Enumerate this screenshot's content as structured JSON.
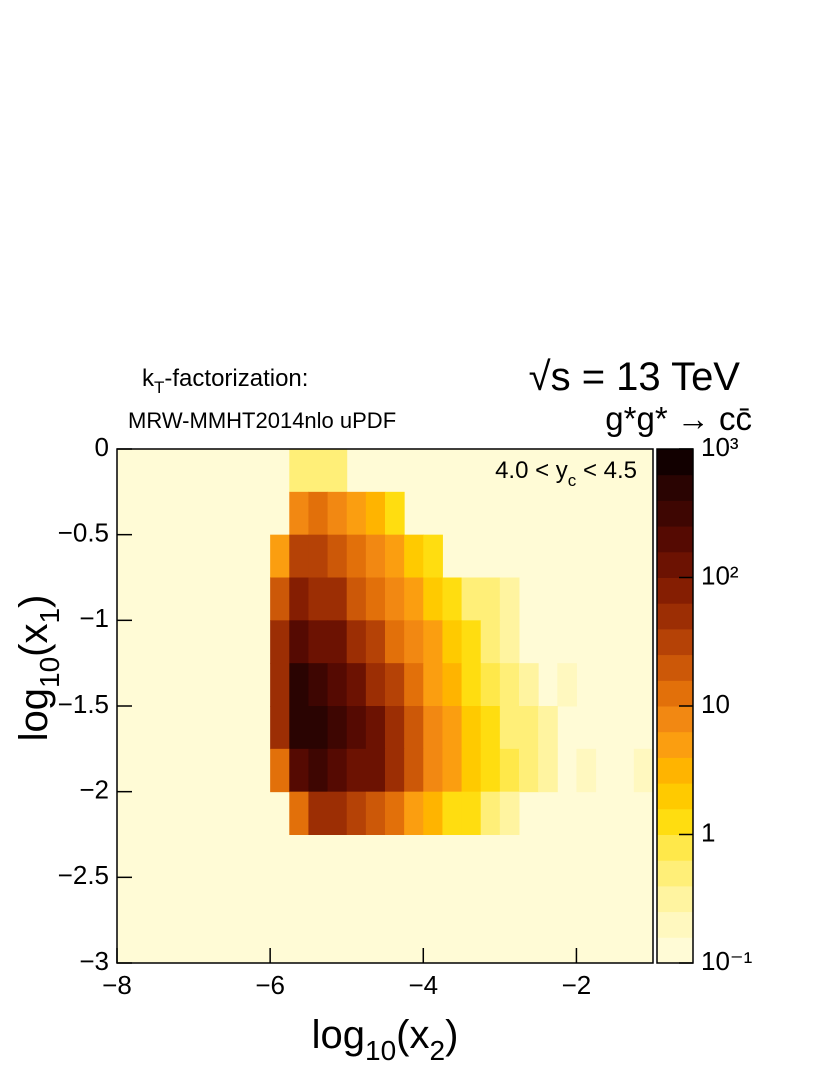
{
  "chart_data": {
    "type": "heatmap",
    "annotations": {
      "scheme": [
        "k",
        "T",
        "-factorization:"
      ],
      "pdf": "MRW-MMHT2014nlo uPDF",
      "energy": "√s = 13 TeV",
      "process": "g*g* → cc̄",
      "rapidity": [
        "4.0 < y",
        "c",
        " < 4.5"
      ]
    },
    "xlabel": [
      "log",
      "10",
      "(x",
      "2",
      ")"
    ],
    "ylabel": [
      "log",
      "10",
      "(x",
      "1",
      ")"
    ],
    "xlim": [
      -8,
      -1
    ],
    "ylim": [
      -3,
      0
    ],
    "xticks": [
      {
        "value": -8,
        "label": "−8"
      },
      {
        "value": -6,
        "label": "−6"
      },
      {
        "value": -4,
        "label": "−4"
      },
      {
        "value": -2,
        "label": "−2"
      }
    ],
    "yticks": [
      0,
      {
        "value": -0.5,
        "label": "−0.5"
      },
      {
        "value": -1,
        "label": "−1"
      },
      {
        "value": -1.5,
        "label": "−1.5"
      },
      {
        "value": -2,
        "label": "−2"
      },
      {
        "value": -2.5,
        "label": "−2.5"
      },
      {
        "value": -3,
        "label": "−3"
      }
    ],
    "zlim": [
      0.1,
      1000
    ],
    "zscale": "log",
    "zticks": [
      {
        "value": 0.1,
        "label": "10⁻¹"
      },
      1,
      10,
      {
        "value": 100,
        "label": "10²"
      },
      {
        "value": 1000,
        "label": "10³"
      }
    ],
    "palette": [
      "#fffbd6",
      "#fff8bf",
      "#fff4a0",
      "#ffef78",
      "#ffe84a",
      "#ffdd10",
      "#ffca00",
      "#ffb400",
      "#fb9e10",
      "#f28812",
      "#e2700a",
      "#cc5808",
      "#b54206",
      "#9c2e04",
      "#851e02",
      "#6c1202",
      "#550a02",
      "#3e0602",
      "#2a0402",
      "#120000"
    ],
    "xbins": [
      -8,
      -7.75,
      -7.5,
      -7.25,
      -7,
      -6.75,
      -6.5,
      -6.25,
      -6,
      -5.75,
      -5.5,
      -5.25,
      -5,
      -4.75,
      -4.5,
      -4.25,
      -4,
      -3.75,
      -3.5,
      -3.25,
      -3,
      -2.75,
      -2.5,
      -2.25,
      -2,
      -1.75,
      -1.5,
      -1.25,
      -1
    ],
    "ybins": [
      0,
      -0.25,
      -0.5,
      -0.75,
      -1,
      -1.25,
      -1.5,
      -1.75,
      -2,
      -2.25,
      -2.5,
      -2.75,
      -3
    ],
    "z": [
      [
        null,
        null,
        null,
        null,
        null,
        null,
        null,
        null,
        null,
        0.5,
        0.5,
        0.5,
        null,
        null,
        null,
        null,
        null,
        null,
        null,
        null,
        null,
        null,
        null,
        null,
        null,
        null,
        null,
        null
      ],
      [
        null,
        null,
        null,
        null,
        null,
        null,
        null,
        null,
        null,
        8,
        10,
        8,
        5,
        3,
        1,
        null,
        null,
        null,
        null,
        null,
        null,
        null,
        null,
        null,
        null,
        null,
        null,
        null
      ],
      [
        null,
        null,
        null,
        null,
        null,
        null,
        null,
        null,
        5,
        30,
        30,
        20,
        15,
        8,
        5,
        2,
        1,
        null,
        null,
        null,
        null,
        null,
        null,
        null,
        null,
        null,
        null,
        null
      ],
      [
        null,
        null,
        null,
        null,
        null,
        null,
        null,
        null,
        20,
        80,
        60,
        40,
        25,
        15,
        8,
        4,
        2,
        1,
        0.5,
        0.5,
        0.3,
        null,
        null,
        null,
        null,
        null,
        null,
        null
      ],
      [
        null,
        null,
        null,
        null,
        null,
        null,
        null,
        null,
        40,
        200,
        150,
        100,
        60,
        35,
        15,
        8,
        4,
        2,
        1,
        0.5,
        0.3,
        null,
        null,
        null,
        null,
        null,
        null,
        null
      ],
      [
        null,
        null,
        null,
        null,
        null,
        null,
        null,
        null,
        60,
        400,
        350,
        200,
        120,
        60,
        30,
        12,
        5,
        3,
        1.5,
        0.8,
        0.5,
        0.3,
        null,
        0.2,
        null,
        null,
        null,
        null
      ],
      [
        null,
        null,
        null,
        null,
        null,
        null,
        null,
        null,
        40,
        500,
        600,
        300,
        180,
        100,
        50,
        20,
        8,
        4,
        2,
        1,
        0.6,
        0.4,
        0.3,
        null,
        null,
        null,
        null,
        null
      ],
      [
        null,
        null,
        null,
        null,
        null,
        null,
        null,
        null,
        10,
        200,
        300,
        250,
        150,
        100,
        50,
        20,
        8,
        4,
        2,
        1.5,
        0.8,
        0.5,
        0.3,
        null,
        0.2,
        null,
        null,
        0.2
      ],
      [
        null,
        null,
        null,
        null,
        null,
        null,
        null,
        null,
        null,
        10,
        40,
        40,
        30,
        20,
        12,
        6,
        3,
        1.5,
        1,
        0.5,
        0.3,
        null,
        null,
        null,
        null,
        null,
        null,
        null
      ],
      [
        null,
        null,
        null,
        null,
        null,
        null,
        null,
        null,
        null,
        null,
        null,
        null,
        null,
        null,
        null,
        null,
        null,
        null,
        null,
        null,
        null,
        null,
        null,
        null,
        null,
        null,
        null,
        null
      ],
      [
        null,
        null,
        null,
        null,
        null,
        null,
        null,
        null,
        null,
        null,
        null,
        null,
        null,
        null,
        null,
        null,
        null,
        null,
        null,
        null,
        null,
        null,
        null,
        null,
        null,
        null,
        null,
        null
      ],
      [
        null,
        null,
        null,
        null,
        null,
        null,
        null,
        null,
        null,
        null,
        null,
        null,
        null,
        null,
        null,
        null,
        null,
        null,
        null,
        null,
        null,
        null,
        null,
        null,
        null,
        null,
        null,
        null
      ]
    ]
  }
}
